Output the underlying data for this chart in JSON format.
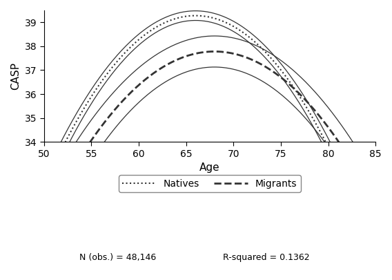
{
  "title": "",
  "xlabel": "Age",
  "ylabel": "CASP",
  "xlim": [
    50,
    85
  ],
  "ylim": [
    34,
    39.5
  ],
  "yticks": [
    34,
    35,
    36,
    37,
    38,
    39
  ],
  "xticks": [
    50,
    55,
    60,
    65,
    70,
    75,
    80,
    85
  ],
  "footnote_left": "N (obs.) = 48,146",
  "footnote_right": "R-squared = 0.1362",
  "legend_labels": [
    "Natives",
    "Migrants"
  ],
  "line_color": "#333333",
  "background_color": "#ffffff"
}
